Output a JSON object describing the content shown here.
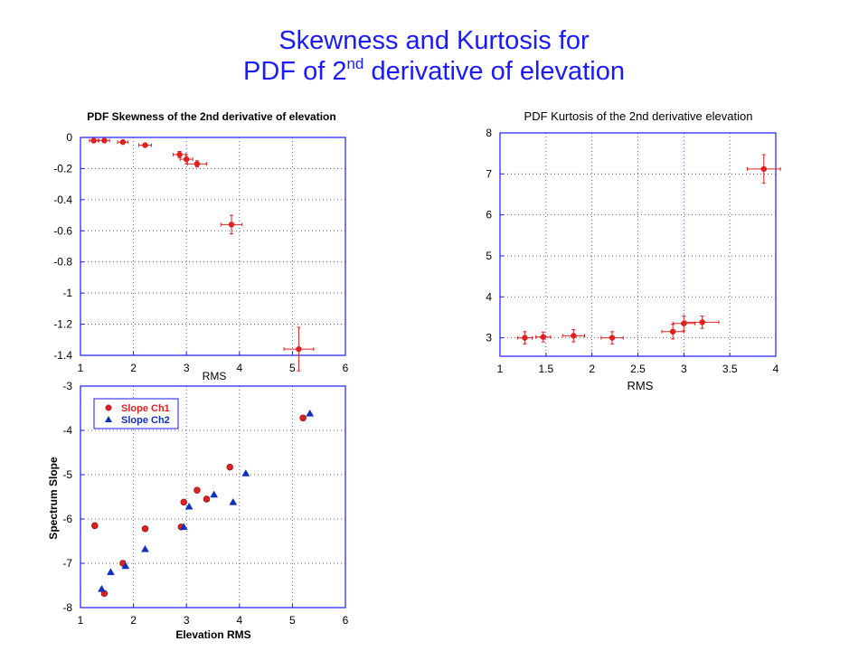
{
  "slide": {
    "title_line1": "Skewness and Kurtosis for",
    "title_line2_pre": "PDF of 2",
    "title_line2_sup": "nd",
    "title_line2_post": " derivative  of elevation"
  },
  "colors": {
    "title": "#1a1aff",
    "ch1": "#e02020",
    "ch2": "#1030c0",
    "frame": "#1a1aff",
    "grid": "#3030c0"
  },
  "chart_data": [
    {
      "id": "skewness",
      "type": "scatter",
      "title": "PDF Skewness of the 2nd derivative of elevation",
      "xlabel": "RMS",
      "ylabel": "",
      "xlim": [
        1,
        6
      ],
      "ylim": [
        -1.4,
        0
      ],
      "xticks": [
        1,
        2,
        3,
        4,
        5,
        6
      ],
      "yticks": [
        0,
        -0.2,
        -0.4,
        -0.6,
        -0.8,
        -1,
        -1.2,
        -1.4
      ],
      "xtick_labels": [
        "1",
        "2",
        "3",
        "4",
        "5",
        "6"
      ],
      "ytick_labels": [
        "0",
        "-0.2",
        "-0.4",
        "-0.6",
        "-0.8",
        "-1",
        "-1.2",
        "-1.4"
      ],
      "grid": "dotted",
      "series": [
        {
          "points": [
            {
              "x": 1.25,
              "y": -0.02,
              "xerr": 0.08,
              "yerr": 0.01
            },
            {
              "x": 1.45,
              "y": -0.02,
              "xerr": 0.1,
              "yerr": 0.01
            },
            {
              "x": 1.8,
              "y": -0.03,
              "xerr": 0.1,
              "yerr": 0.01
            },
            {
              "x": 2.22,
              "y": -0.05,
              "xerr": 0.12,
              "yerr": 0.01
            },
            {
              "x": 2.87,
              "y": -0.11,
              "xerr": 0.12,
              "yerr": 0.02
            },
            {
              "x": 3.0,
              "y": -0.14,
              "xerr": 0.12,
              "yerr": 0.03
            },
            {
              "x": 3.2,
              "y": -0.17,
              "xerr": 0.18,
              "yerr": 0.02
            },
            {
              "x": 3.85,
              "y": -0.56,
              "xerr": 0.2,
              "yerr": 0.06
            },
            {
              "x": 5.12,
              "y": -1.36,
              "xerr": 0.28,
              "yerr": 0.14
            }
          ]
        }
      ]
    },
    {
      "id": "kurtosis",
      "type": "scatter",
      "title": "PDF Kurtosis of the 2nd derivative elevation",
      "xlabel": "RMS",
      "ylabel": "",
      "xlim": [
        1,
        4
      ],
      "ylim": [
        2.55,
        8
      ],
      "xticks": [
        1,
        1.5,
        2,
        2.5,
        3,
        3.5,
        4
      ],
      "yticks": [
        3,
        4,
        5,
        6,
        7,
        8
      ],
      "xtick_labels": [
        "1",
        "1.5",
        "2",
        "2.5",
        "3",
        "3.5",
        "4"
      ],
      "ytick_labels": [
        "3",
        "4",
        "5",
        "6",
        "7",
        "8"
      ],
      "grid": "dotted",
      "series": [
        {
          "points": [
            {
              "x": 1.27,
              "y": 3.0,
              "xerr": 0.08,
              "yerr": 0.15
            },
            {
              "x": 1.47,
              "y": 3.02,
              "xerr": 0.08,
              "yerr": 0.12
            },
            {
              "x": 1.8,
              "y": 3.05,
              "xerr": 0.12,
              "yerr": 0.15
            },
            {
              "x": 2.22,
              "y": 3.0,
              "xerr": 0.12,
              "yerr": 0.15
            },
            {
              "x": 2.88,
              "y": 3.15,
              "xerr": 0.12,
              "yerr": 0.18
            },
            {
              "x": 3.0,
              "y": 3.35,
              "xerr": 0.12,
              "yerr": 0.18
            },
            {
              "x": 3.2,
              "y": 3.38,
              "xerr": 0.18,
              "yerr": 0.15
            },
            {
              "x": 3.87,
              "y": 7.12,
              "xerr": 0.18,
              "yerr": 0.35
            }
          ]
        }
      ]
    },
    {
      "id": "spectrum-slope",
      "type": "scatter",
      "title": "",
      "xlabel": "Elevation RMS",
      "ylabel": "Spectrum Slope",
      "xlim": [
        1,
        6
      ],
      "ylim": [
        -8,
        -3
      ],
      "xticks": [
        1,
        2,
        3,
        4,
        5,
        6
      ],
      "yticks": [
        -3,
        -4,
        -5,
        -6,
        -7,
        -8
      ],
      "xtick_labels": [
        "1",
        "2",
        "3",
        "4",
        "5",
        "6"
      ],
      "ytick_labels": [
        "-3",
        "-4",
        "-5",
        "-6",
        "-7",
        "-8"
      ],
      "grid": "dotted",
      "legend_position": "top-left",
      "series": [
        {
          "name": "Slope Ch1",
          "marker": "circle",
          "points": [
            {
              "x": 1.27,
              "y": -6.15
            },
            {
              "x": 1.45,
              "y": -7.68
            },
            {
              "x": 1.8,
              "y": -7.0
            },
            {
              "x": 2.22,
              "y": -6.22
            },
            {
              "x": 2.9,
              "y": -6.18
            },
            {
              "x": 2.95,
              "y": -5.62
            },
            {
              "x": 3.2,
              "y": -5.35
            },
            {
              "x": 3.38,
              "y": -5.55
            },
            {
              "x": 3.82,
              "y": -4.83
            },
            {
              "x": 5.2,
              "y": -3.72
            }
          ]
        },
        {
          "name": "Slope Ch2",
          "marker": "triangle",
          "points": [
            {
              "x": 1.4,
              "y": -7.58
            },
            {
              "x": 1.57,
              "y": -7.2
            },
            {
              "x": 1.85,
              "y": -7.06
            },
            {
              "x": 2.22,
              "y": -6.68
            },
            {
              "x": 2.95,
              "y": -6.18
            },
            {
              "x": 3.05,
              "y": -5.72
            },
            {
              "x": 3.52,
              "y": -5.45
            },
            {
              "x": 3.88,
              "y": -5.62
            },
            {
              "x": 4.12,
              "y": -4.97
            },
            {
              "x": 5.33,
              "y": -3.62
            }
          ]
        }
      ]
    }
  ]
}
